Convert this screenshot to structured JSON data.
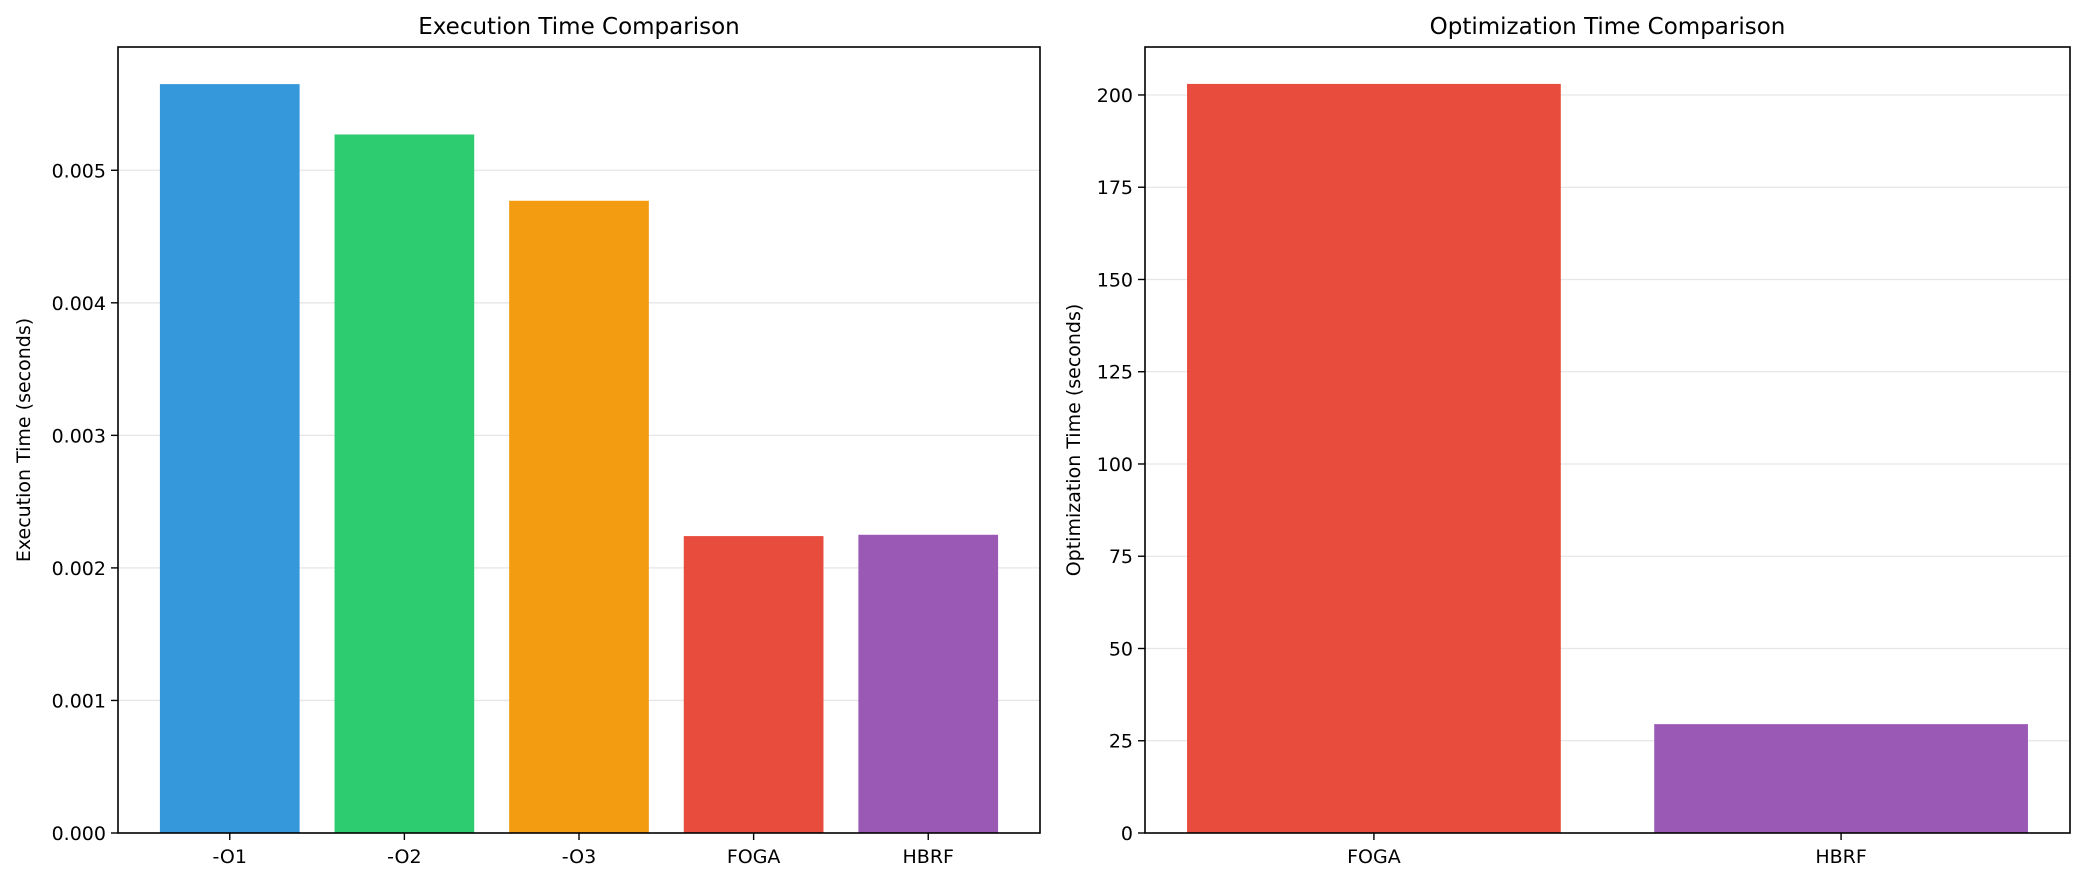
{
  "chart_data": [
    {
      "type": "bar",
      "title": "Execution Time Comparison",
      "xlabel": "",
      "ylabel": "Execution Time (seconds)",
      "categories": [
        "-O1",
        "-O2",
        "-O3",
        "FOGA",
        "HBRF"
      ],
      "values": [
        0.00565,
        0.00527,
        0.00477,
        0.00224,
        0.00225
      ],
      "colors": [
        "#3498db",
        "#2ecc71",
        "#f39c12",
        "#e74c3c",
        "#9b59b6"
      ],
      "ylim": [
        0,
        0.00593
      ],
      "yticks": [
        0,
        0.001,
        0.002,
        0.003,
        0.004,
        0.005
      ],
      "ytick_labels": [
        "0.000",
        "0.001",
        "0.002",
        "0.003",
        "0.004",
        "0.005"
      ],
      "grid": "y"
    },
    {
      "type": "bar",
      "title": "Optimization Time Comparison",
      "xlabel": "",
      "ylabel": "Optimization Time (seconds)",
      "categories": [
        "FOGA",
        "HBRF"
      ],
      "values": [
        203,
        29.5
      ],
      "colors": [
        "#e74c3c",
        "#9b59b6"
      ],
      "ylim": [
        0,
        213
      ],
      "yticks": [
        0,
        25,
        50,
        75,
        100,
        125,
        150,
        175,
        200
      ],
      "ytick_labels": [
        "0",
        "25",
        "50",
        "75",
        "100",
        "125",
        "150",
        "175",
        "200"
      ],
      "grid": "y"
    }
  ]
}
